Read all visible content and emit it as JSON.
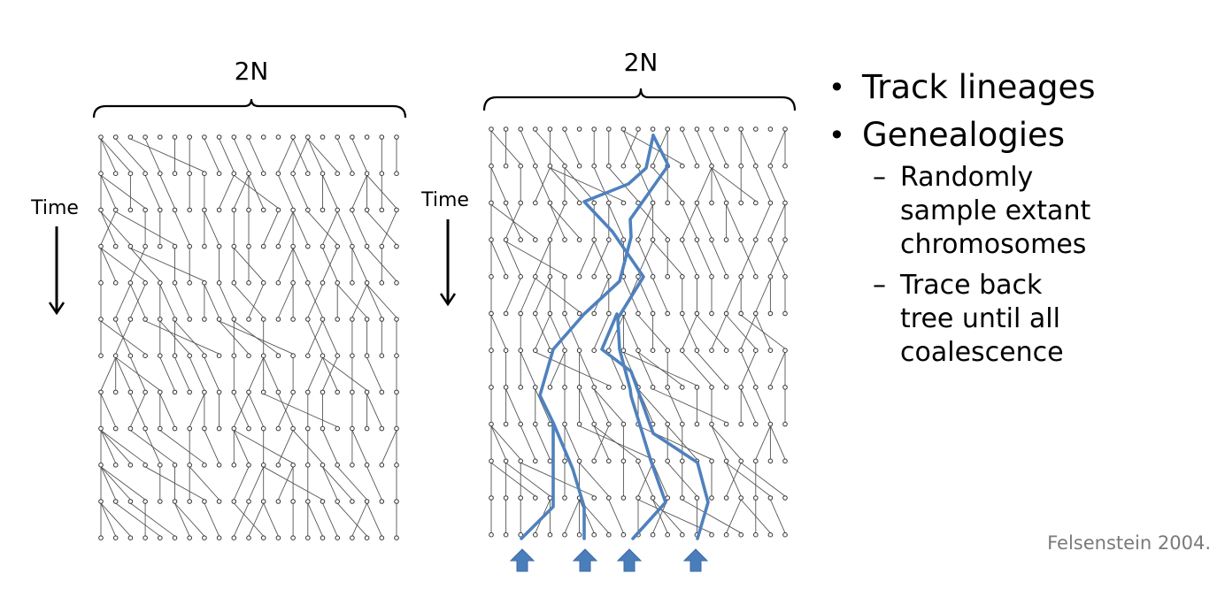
{
  "panels": [
    {
      "size_label": "2N",
      "time_label": "Time"
    },
    {
      "size_label": "2N",
      "time_label": "Time"
    }
  ],
  "bullets": [
    {
      "text": "Track lineages",
      "subitems": []
    },
    {
      "text": "Genealogies",
      "subitems": [
        "Randomly sample extant chromosomes",
        "Trace back tree until all coalescence"
      ]
    }
  ],
  "citation": "Felsenstein 2004.",
  "colors": {
    "lineage": "#4f81bd",
    "arrow": "#4a7ebb",
    "grid": "#555555"
  }
}
